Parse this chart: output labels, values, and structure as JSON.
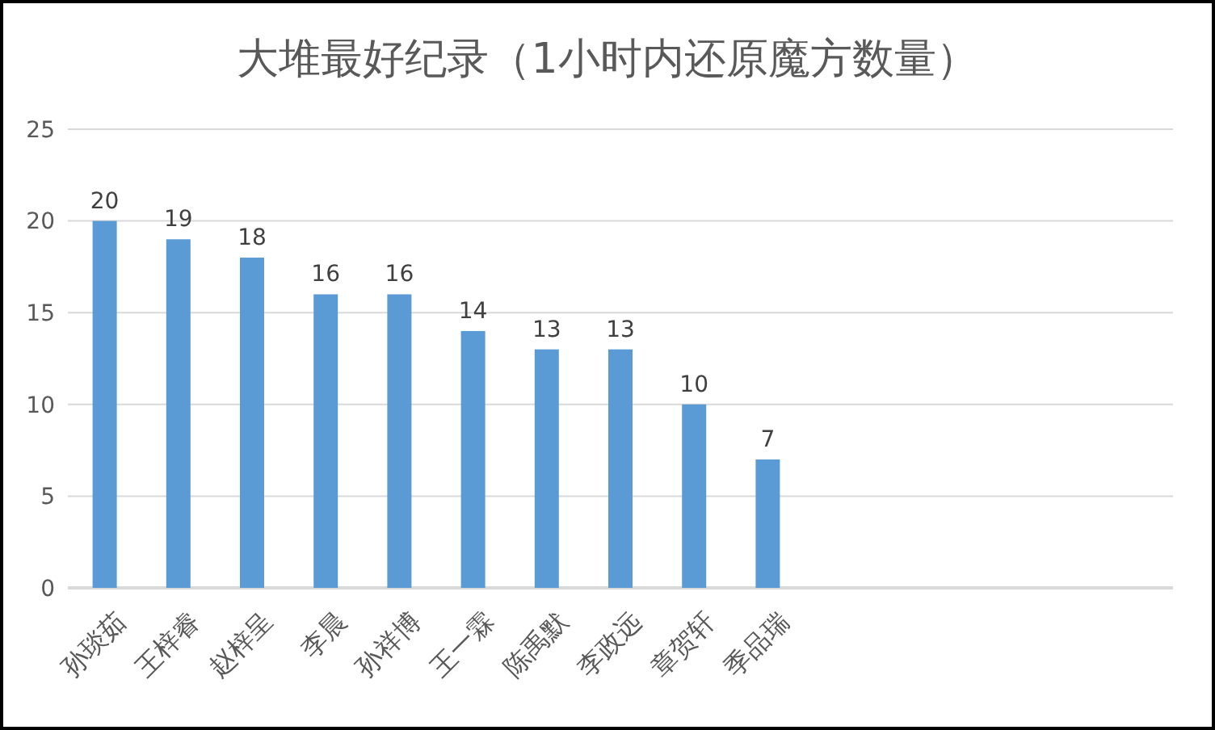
{
  "chart_data": {
    "type": "bar",
    "title": "大堆最好纪录（1小时内还原魔方数量）",
    "categories": [
      "孙琰茹",
      "王梓睿",
      "赵梓呈",
      "李晨",
      "孙祥博",
      "王一霖",
      "陈禹默",
      "李政远",
      "章贺轩",
      "季品瑞",
      null,
      null,
      null,
      null,
      null
    ],
    "values": [
      20,
      19,
      18,
      16,
      16,
      14,
      13,
      13,
      10,
      7,
      null,
      null,
      null,
      null,
      null
    ],
    "color": "#5b9bd5",
    "ylim": [
      0,
      25
    ],
    "yticks": [
      0,
      5,
      10,
      15,
      20,
      25
    ],
    "grid": "y",
    "data_labels": true
  }
}
